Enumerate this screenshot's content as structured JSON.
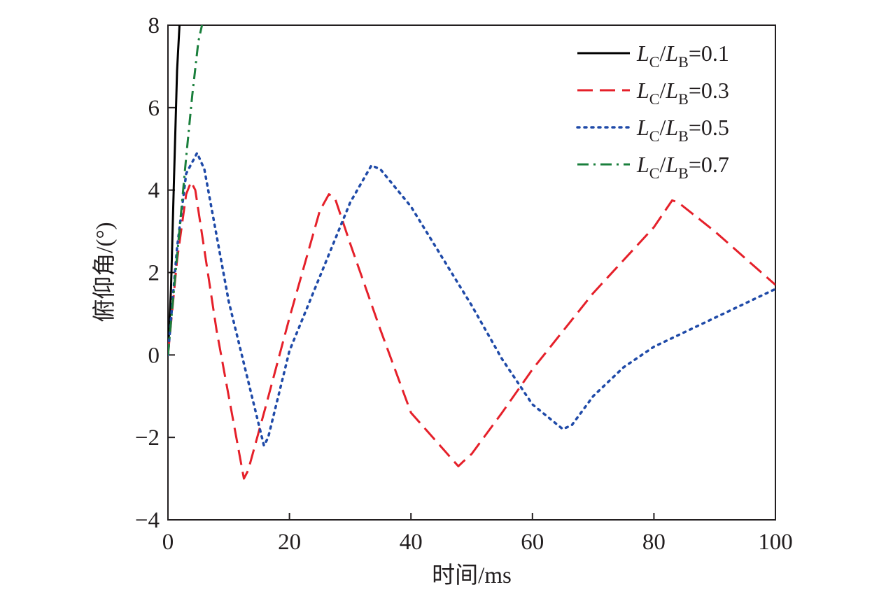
{
  "chart_data": {
    "type": "line",
    "xlabel": "时间/ms",
    "ylabel": "俯仰角/(°)",
    "xlim": [
      0,
      100
    ],
    "ylim": [
      -4,
      8
    ],
    "xticks": [
      0,
      20,
      40,
      60,
      80,
      100
    ],
    "yticks": [
      -4,
      -2,
      0,
      2,
      4,
      6,
      8
    ],
    "xtick_labels": [
      "0",
      "20",
      "40",
      "60",
      "80",
      "100"
    ],
    "ytick_labels": [
      "−4",
      "−2",
      "0",
      "2",
      "4",
      "6",
      "8"
    ],
    "grid": false,
    "legend_position": "top-right",
    "series": [
      {
        "name": "LC/LB=0.1",
        "name_parts": {
          "a": "L",
          "a_sub": "C",
          "sep": "/",
          "b": "L",
          "b_sub": "B",
          "tail": "=0.1"
        },
        "color": "#000000",
        "dash": "solid",
        "x": [
          0,
          0.5,
          1.0,
          1.5,
          1.9
        ],
        "y": [
          0,
          1.6,
          4.3,
          6.9,
          8.0
        ]
      },
      {
        "name": "LC/LB=0.3",
        "name_parts": {
          "a": "L",
          "a_sub": "C",
          "sep": "/",
          "b": "L",
          "b_sub": "B",
          "tail": "=0.3"
        },
        "color": "#e5202a",
        "dash": "dashed",
        "x": [
          0,
          1.5,
          3.0,
          3.8,
          4.5,
          8,
          12.5,
          13.2,
          16,
          20,
          25,
          26.5,
          27.5,
          30,
          35,
          40,
          47.8,
          48.5,
          50,
          55,
          60,
          70,
          80,
          83,
          84,
          90,
          100
        ],
        "y": [
          0,
          2.3,
          3.9,
          4.2,
          4.0,
          0.6,
          -3.0,
          -2.8,
          -1.3,
          0.9,
          3.5,
          3.9,
          3.8,
          2.7,
          0.6,
          -1.4,
          -2.7,
          -2.6,
          -2.4,
          -1.4,
          -0.35,
          1.5,
          3.1,
          3.75,
          3.7,
          3.0,
          1.7
        ]
      },
      {
        "name": "LC/LB=0.5",
        "name_parts": {
          "a": "L",
          "a_sub": "C",
          "sep": "/",
          "b": "L",
          "b_sub": "B",
          "tail": "=0.5"
        },
        "color": "#1f4aa8",
        "dash": "dotted",
        "x": [
          0,
          1.5,
          3.0,
          4.8,
          6,
          10,
          15.8,
          16.5,
          20,
          25,
          30,
          33.5,
          35,
          40,
          50,
          55,
          60,
          65,
          66.5,
          70,
          75,
          80,
          90,
          100
        ],
        "y": [
          0,
          2.6,
          4.4,
          4.9,
          4.5,
          1.3,
          -2.2,
          -2.0,
          0.1,
          1.9,
          3.7,
          4.6,
          4.5,
          3.6,
          1.2,
          -0.1,
          -1.2,
          -1.8,
          -1.7,
          -1.0,
          -0.3,
          0.2,
          0.9,
          1.6
        ]
      },
      {
        "name": "LC/LB=0.7",
        "name_parts": {
          "a": "L",
          "a_sub": "C",
          "sep": "/",
          "b": "L",
          "b_sub": "B",
          "tail": "=0.7"
        },
        "color": "#1a7f3c",
        "dash": "dashdot",
        "x": [
          0,
          1.0,
          2.0,
          3.0,
          4.0,
          5.0,
          5.6
        ],
        "y": [
          0,
          1.6,
          3.2,
          4.8,
          6.3,
          7.6,
          8.0
        ]
      }
    ]
  }
}
